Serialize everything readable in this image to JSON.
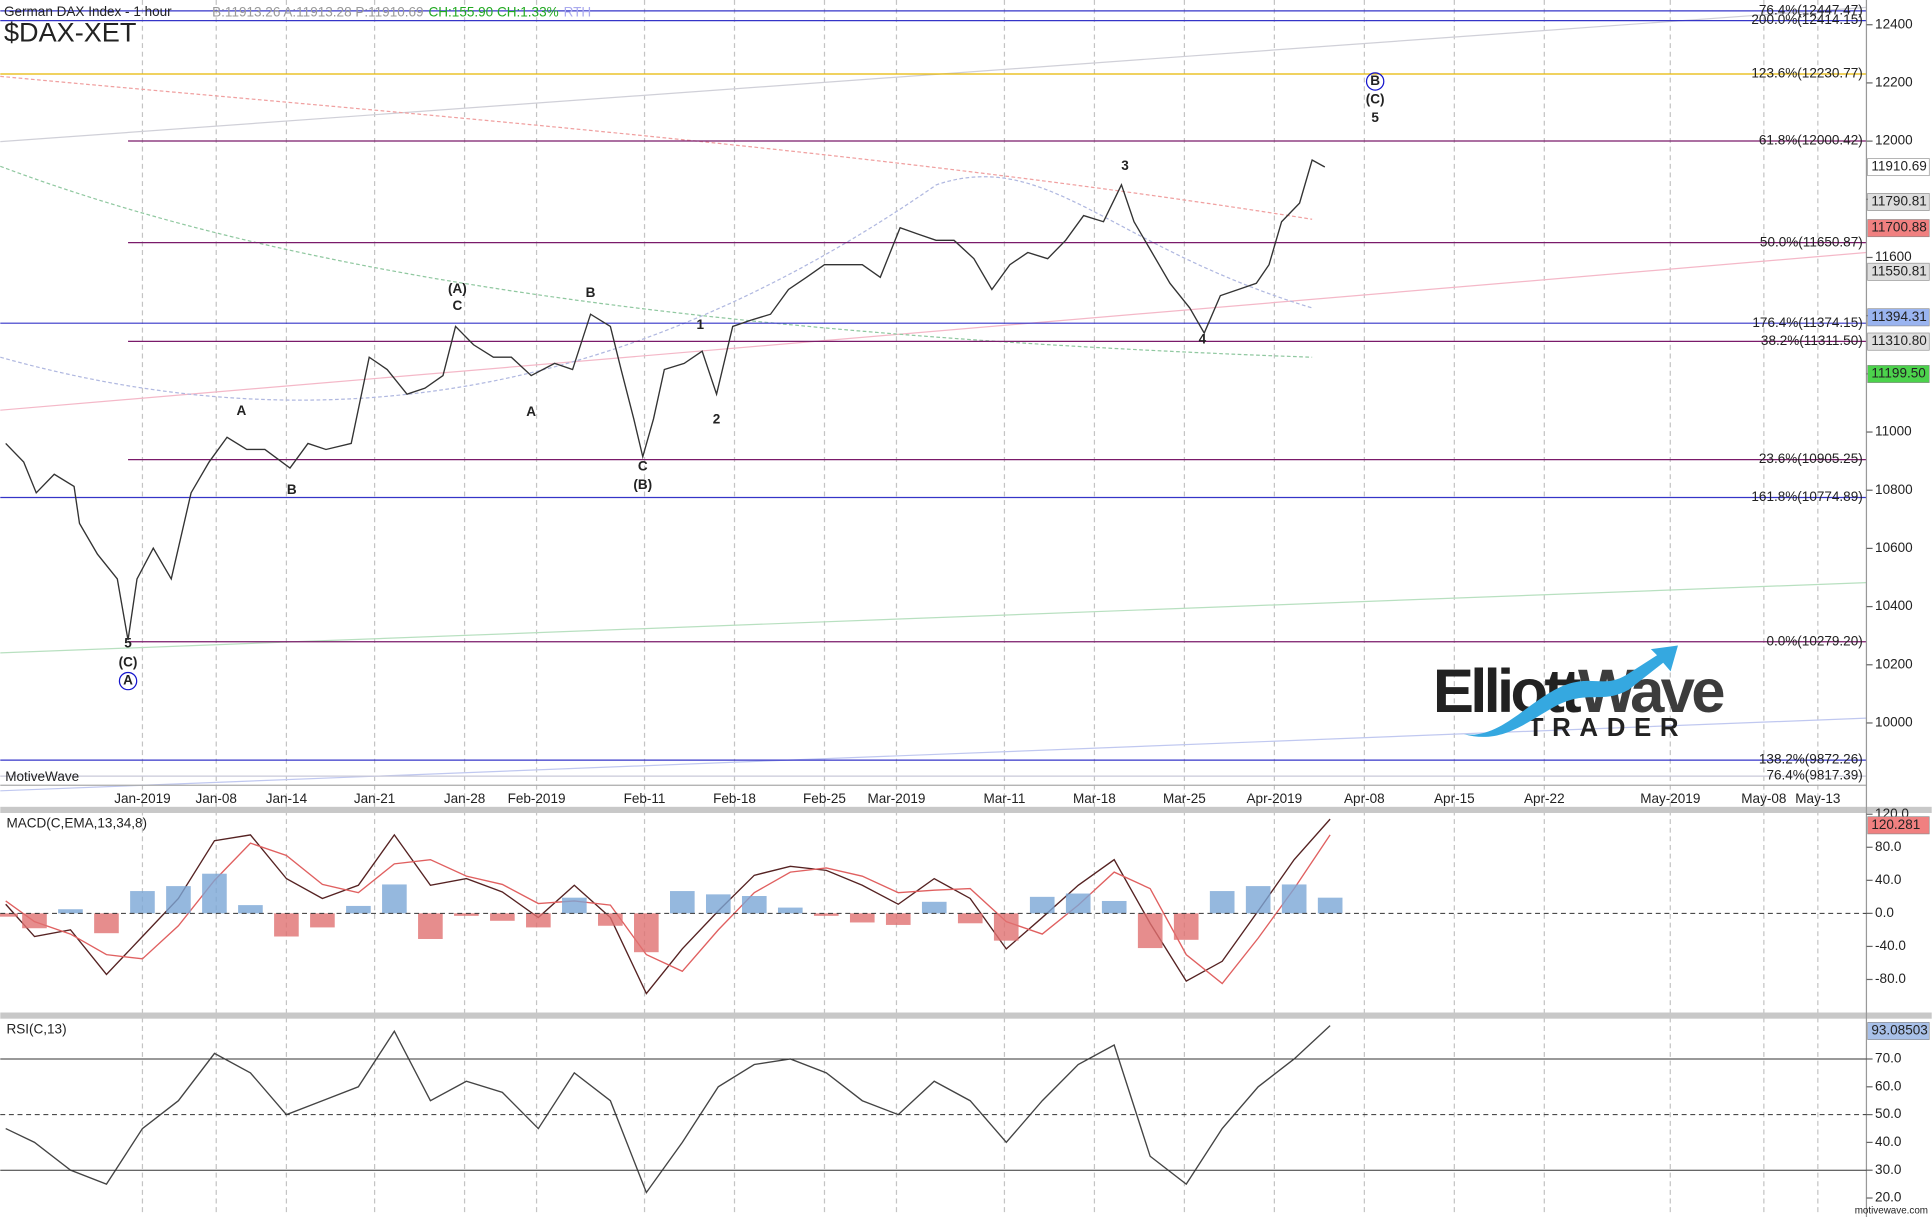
{
  "chart_data": [
    {
      "type": "line",
      "title": "German DAX Index - 1 hour",
      "symbol": "$DAX-XET",
      "quote": [
        {
          "text": "B:11913.26 A:11913.28 P:11910.69",
          "color": "#999999"
        },
        {
          "text": "CH:155.90 CH:1.33%",
          "color": "#22aa22"
        },
        {
          "text": "RTH",
          "color": "#aaaaee"
        }
      ],
      "watermark": "MotiveWave",
      "xlim": [
        -7.9,
        95.8
      ],
      "xticks": [
        {
          "value": 0,
          "label": "Jan-2019"
        },
        {
          "value": 4.1,
          "label": "Jan-08"
        },
        {
          "value": 8.0,
          "label": "Jan-14"
        },
        {
          "value": 12.9,
          "label": "Jan-21"
        },
        {
          "value": 17.9,
          "label": "Jan-28"
        },
        {
          "value": 21.9,
          "label": "Feb-2019"
        },
        {
          "value": 27.9,
          "label": "Feb-11"
        },
        {
          "value": 32.9,
          "label": "Feb-18"
        },
        {
          "value": 37.9,
          "label": "Feb-25"
        },
        {
          "value": 41.9,
          "label": "Mar-2019"
        },
        {
          "value": 47.9,
          "label": "Mar-11"
        },
        {
          "value": 52.9,
          "label": "Mar-18"
        },
        {
          "value": 57.9,
          "label": "Mar-25"
        },
        {
          "value": 62.9,
          "label": "Apr-2019"
        },
        {
          "value": 67.9,
          "label": "Apr-08"
        },
        {
          "value": 72.9,
          "label": "Apr-15"
        },
        {
          "value": 77.9,
          "label": "Apr-22"
        },
        {
          "value": 84.9,
          "label": "May-2019"
        },
        {
          "value": 90.1,
          "label": "May-08"
        },
        {
          "value": 93.1,
          "label": "May-13"
        }
      ],
      "ylim": [
        9788,
        12485
      ],
      "yticks": [
        12400,
        12200,
        12000,
        11800,
        11600,
        11400,
        11200,
        11000,
        10800,
        10600,
        10400,
        10200,
        10000
      ],
      "x": [
        -7.6,
        -6.6,
        -5.9,
        -4.9,
        -3.8,
        -3.5,
        -2.5,
        -1.4,
        -0.8,
        -0.3,
        0.6,
        1.6,
        2.7,
        3.7,
        4.7,
        5.8,
        6.8,
        8.2,
        9.2,
        10.2,
        11.6,
        12.6,
        13.6,
        14.7,
        15.7,
        16.7,
        17.4,
        18.4,
        19.5,
        20.5,
        21.6,
        22.9,
        23.9,
        24.9,
        26.0,
        26.6,
        27.3,
        27.8,
        28.4,
        29.0,
        30.1,
        31.1,
        31.9,
        32.8,
        33.8,
        34.9,
        35.9,
        36.9,
        37.9,
        39.0,
        40.0,
        41.0,
        42.1,
        43.1,
        44.1,
        45.1,
        46.2,
        47.2,
        48.2,
        49.2,
        50.3,
        51.3,
        52.3,
        53.4,
        54.4,
        55.1,
        56.1,
        57.1,
        58.2,
        59.0,
        59.9,
        60.9,
        61.9,
        62.6,
        63.3,
        64.3,
        65.0,
        65.7
      ],
      "series": [
        {
          "color": "#333333",
          "values": [
            10961,
            10897,
            10791,
            10855,
            10813,
            10686,
            10580,
            10495,
            10285,
            10495,
            10601,
            10495,
            10791,
            10897,
            10982,
            10940,
            10940,
            10876,
            10961,
            10940,
            10961,
            11257,
            11215,
            11130,
            11151,
            11194,
            11363,
            11300,
            11257,
            11257,
            11194,
            11236,
            11215,
            11405,
            11363,
            11215,
            11045,
            10915,
            11045,
            11215,
            11236,
            11278,
            11130,
            11363,
            11384,
            11405,
            11490,
            11532,
            11575,
            11575,
            11575,
            11532,
            11702,
            11680,
            11659,
            11659,
            11596,
            11490,
            11575,
            11617,
            11596,
            11659,
            11744,
            11723,
            11850,
            11723,
            11617,
            11511,
            11426,
            11340,
            11469,
            11490,
            11511,
            11575,
            11723,
            11787,
            11935,
            11911
          ]
        }
      ],
      "levels": [
        {
          "label": "76.4%(12447.47)",
          "value": 12447.47,
          "color": "#3535c8"
        },
        {
          "label": "200.0%(12414.15)",
          "value": 12414.15,
          "color": "#3535c8"
        },
        {
          "label": "123.6%(12230.77)",
          "value": 12230.77,
          "color": "#e8b800"
        },
        {
          "label": "61.8%(12000.42)",
          "value": 12000.42,
          "color": "#7a1a6a",
          "x0": -0.8
        },
        {
          "label": "50.0%(11650.87)",
          "value": 11650.87,
          "color": "#7a1a6a",
          "x0": -0.8
        },
        {
          "label": "176.4%(11374.15)",
          "value": 11374.15,
          "color": "#3535c8"
        },
        {
          "label": "38.2%(11311.50)",
          "value": 11311.5,
          "color": "#7a1a6a",
          "x0": -0.8
        },
        {
          "label": "23.6%(10905.25)",
          "value": 10905.25,
          "color": "#7a1a6a",
          "x0": -0.8
        },
        {
          "label": "161.8%(10774.89)",
          "value": 10774.89,
          "color": "#3535c8"
        },
        {
          "label": "0.0%(10279.20)",
          "value": 10279.2,
          "color": "#7a1a6a",
          "x0": -0.8
        },
        {
          "label": "138.2%(9872.26)",
          "value": 9872.26,
          "color": "#3535c8"
        },
        {
          "label": "76.4%(9817.39)",
          "value": 9817.39,
          "color": "#c8c8d8"
        }
      ],
      "price_tags": [
        {
          "value": 11910.69,
          "color": "#ffffff"
        },
        {
          "value": 11790.81,
          "color": "#dddddd"
        },
        {
          "value": 11700.88,
          "color": "#f08080"
        },
        {
          "value": 11550.81,
          "color": "#dddddd"
        },
        {
          "value": 11394.31,
          "color": "#9ab4f0"
        },
        {
          "value": 11310.8,
          "label": "11310.80",
          "color": "#dddddd"
        },
        {
          "value": 11199.5,
          "label": "11199.50",
          "color": "#4cd24c"
        }
      ],
      "wave_labels": [
        {
          "text": "5",
          "x": -0.8,
          "y": 10271
        },
        {
          "text": "(C)",
          "x": -0.8,
          "y": 10207
        },
        {
          "text": "A",
          "x": -0.8,
          "y": 10144,
          "circled": true
        },
        {
          "text": "A",
          "x": 5.5,
          "y": 11071
        },
        {
          "text": "B",
          "x": 8.3,
          "y": 10800
        },
        {
          "text": "(A)",
          "x": 17.5,
          "y": 11490
        },
        {
          "text": "C",
          "x": 17.5,
          "y": 11431
        },
        {
          "text": "A",
          "x": 21.6,
          "y": 11067
        },
        {
          "text": "B",
          "x": 24.9,
          "y": 11477
        },
        {
          "text": "C",
          "x": 27.8,
          "y": 10880
        },
        {
          "text": "(B)",
          "x": 27.8,
          "y": 10817
        },
        {
          "text": "1",
          "x": 31.0,
          "y": 11367
        },
        {
          "text": "2",
          "x": 31.9,
          "y": 11041
        },
        {
          "text": "3",
          "x": 54.6,
          "y": 11913
        },
        {
          "text": "4",
          "x": 58.9,
          "y": 11316
        },
        {
          "text": "B",
          "x": 68.5,
          "y": 12205,
          "circled": true
        },
        {
          "text": "(C)",
          "x": 68.5,
          "y": 12142
        },
        {
          "text": "5",
          "x": 68.5,
          "y": 12078
        }
      ]
    },
    {
      "type": "macd",
      "title": "MACD(C,EMA,13,34,8)",
      "ylim": [
        -120,
        121.5
      ],
      "yticks": [
        {
          "value": 120,
          "label": "120.0"
        },
        {
          "value": 80,
          "label": "80.0"
        },
        {
          "value": 40,
          "label": "40.0"
        },
        {
          "value": 0,
          "label": "0.0",
          "line": "dashed"
        },
        {
          "value": -40,
          "label": "-40.0"
        },
        {
          "value": -80,
          "label": "-80.0"
        }
      ],
      "tag": {
        "value": 120.281,
        "color": "#f08080"
      },
      "x": [
        -7.6,
        -6,
        -4,
        -2,
        0,
        2,
        4,
        6,
        8,
        10,
        12,
        14,
        16,
        18,
        20,
        22,
        24,
        26,
        28,
        30,
        32,
        34,
        36,
        38,
        40,
        42,
        44,
        46,
        48,
        50,
        52,
        54,
        56,
        58,
        60,
        62,
        64,
        66
      ],
      "series": [
        {
          "color": "#552222",
          "values": [
            11,
            -28,
            -20,
            -74,
            -28,
            18,
            88,
            95,
            42,
            18,
            34,
            95,
            34,
            42,
            26,
            -5,
            34,
            -5,
            -97,
            -43,
            3,
            46,
            57,
            52,
            34,
            11,
            42,
            18,
            -43,
            -5,
            34,
            65,
            -12,
            -82,
            -58,
            3,
            65,
            114
          ]
        },
        {
          "color": "#e06060",
          "values": [
            15,
            -10,
            -25,
            -50,
            -55,
            -15,
            40,
            85,
            70,
            35,
            25,
            60,
            65,
            45,
            35,
            12,
            15,
            10,
            -50,
            -70,
            -20,
            25,
            50,
            55,
            45,
            25,
            28,
            30,
            -10,
            -25,
            10,
            50,
            30,
            -50,
            -85,
            -30,
            30,
            95
          ]
        },
        {
          "color": "#7aa6d6",
          "color_negative": "#e07070",
          "bars": true,
          "values": [
            -4,
            -18,
            5,
            -24,
            27,
            33,
            48,
            10,
            -28,
            -17,
            9,
            35,
            -31,
            -3,
            -9,
            -17,
            19,
            -15,
            -47,
            27,
            23,
            21,
            7,
            -3,
            -11,
            -14,
            14,
            -12,
            -33,
            20,
            24,
            15,
            -42,
            -32,
            27,
            33,
            35,
            19
          ]
        }
      ]
    },
    {
      "type": "line",
      "title": "RSI(C,13)",
      "ylim": [
        14.5,
        84.5
      ],
      "yticks": [
        {
          "value": 70,
          "label": "70.0",
          "line": "solid"
        },
        {
          "value": 60,
          "label": "60.0"
        },
        {
          "value": 50,
          "label": "50.0",
          "line": "dashed"
        },
        {
          "value": 40,
          "label": "40.0"
        },
        {
          "value": 30,
          "label": "30.0",
          "line": "solid"
        },
        {
          "value": 20,
          "label": "20.0"
        }
      ],
      "tag": {
        "value": 93.08503,
        "color": "#a8c0e8"
      },
      "x": [
        -7.6,
        -6,
        -4,
        -2,
        0,
        2,
        4,
        6,
        8,
        10,
        12,
        14,
        16,
        18,
        20,
        22,
        24,
        26,
        28,
        30,
        32,
        34,
        36,
        38,
        40,
        42,
        44,
        46,
        48,
        50,
        52,
        54,
        56,
        58,
        60,
        62,
        64,
        66
      ],
      "series": [
        {
          "color": "#444444",
          "values": [
            45,
            40,
            30,
            25,
            45,
            55,
            72,
            65,
            50,
            55,
            60,
            80,
            55,
            62,
            58,
            45,
            65,
            55,
            22,
            40,
            60,
            68,
            70,
            65,
            55,
            50,
            62,
            55,
            40,
            55,
            68,
            75,
            35,
            25,
            45,
            60,
            70,
            82
          ]
        }
      ]
    }
  ],
  "footer": "motivewave.com",
  "logo": {
    "word1": "Elliott",
    "word2": "Wave",
    "line2": "TRADER"
  }
}
